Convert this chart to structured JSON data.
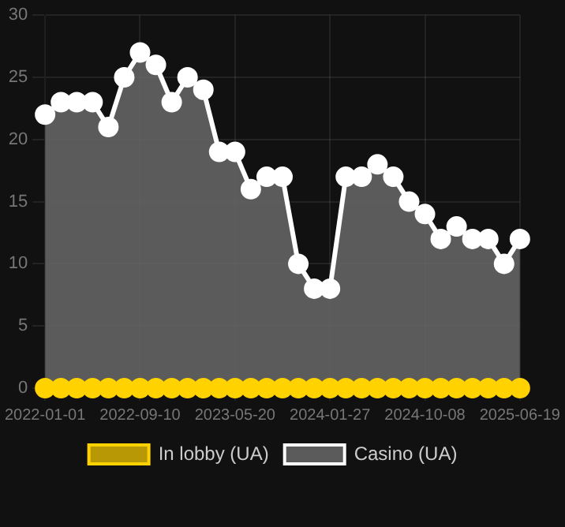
{
  "chart_data": {
    "type": "area",
    "categories": [
      "2022-01-01",
      null,
      null,
      null,
      null,
      null,
      "2022-09-10",
      null,
      null,
      null,
      null,
      null,
      "2023-05-20",
      null,
      null,
      null,
      null,
      null,
      "2024-01-27",
      null,
      null,
      null,
      null,
      null,
      "2024-10-08",
      null,
      null,
      null,
      null,
      null,
      "2025-06-19"
    ],
    "series": [
      {
        "name": "In lobby (UA)",
        "type": "line",
        "color": "#ffd200",
        "values": [
          0,
          0,
          0,
          0,
          0,
          0,
          0,
          0,
          0,
          0,
          0,
          0,
          0,
          0,
          0,
          0,
          0,
          0,
          0,
          0,
          0,
          0,
          0,
          0,
          0,
          0,
          0,
          0,
          0,
          0,
          0
        ]
      },
      {
        "name": "Casino (UA)",
        "color": "#ffffff",
        "values": [
          22,
          23,
          23,
          23,
          21,
          25,
          27,
          26,
          23,
          25,
          24,
          19,
          19,
          16,
          17,
          17,
          10,
          8,
          8,
          17,
          17,
          18,
          17,
          15,
          14,
          12,
          13,
          12,
          12,
          10,
          12
        ]
      }
    ],
    "ylim": [
      0,
      30
    ],
    "yticks": [
      0,
      5,
      10,
      15,
      20,
      25,
      30
    ],
    "grid": true,
    "legend": "bottom",
    "marker": "circle"
  }
}
